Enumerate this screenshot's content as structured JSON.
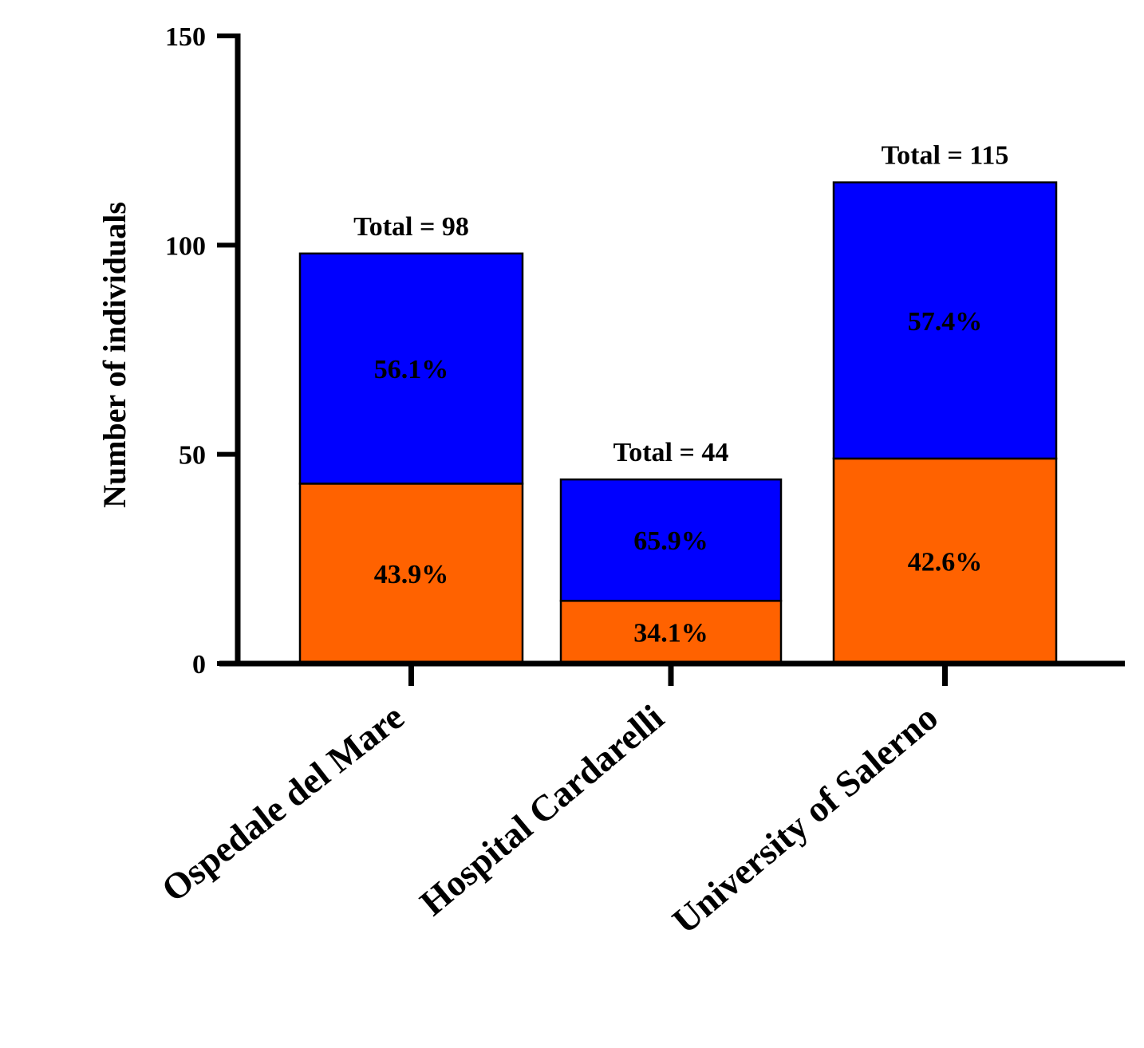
{
  "chart_data": {
    "type": "bar",
    "stacked": true,
    "categories": [
      "Ospedale del Mare",
      "Hospital Cardarelli",
      "University of Salerno"
    ],
    "series": [
      {
        "values": [
          43,
          15,
          49
        ],
        "labels": [
          "43.9%",
          "34.1%",
          "42.6%"
        ],
        "color": "#ff6200"
      },
      {
        "values": [
          55,
          29,
          66
        ],
        "labels": [
          "56.1%",
          "65.9%",
          "57.4%"
        ],
        "color": "#0000ff"
      }
    ],
    "totals": [
      "Total = 98",
      "Total = 44",
      "Total = 115"
    ],
    "ylabel": "Number of individuals",
    "xlabel": "",
    "title": "",
    "ylim": [
      0,
      150
    ],
    "yticks": [
      "0",
      "50",
      "100",
      "150"
    ],
    "ytick_values": [
      0,
      50,
      100,
      150
    ],
    "grid": false,
    "legend": "none"
  }
}
